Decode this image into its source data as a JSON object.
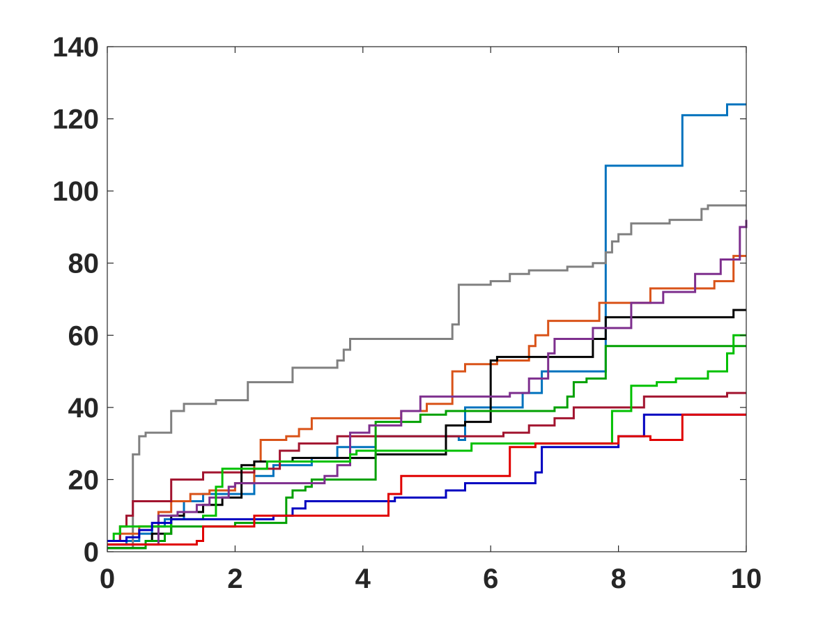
{
  "chart_data": {
    "type": "line",
    "step": true,
    "title": "",
    "xlabel": "",
    "ylabel": "",
    "xlim": [
      0,
      10
    ],
    "ylim": [
      0,
      140
    ],
    "x_ticks": [
      0,
      2,
      4,
      6,
      8,
      10
    ],
    "y_ticks": [
      0,
      20,
      40,
      60,
      80,
      100,
      120,
      140
    ],
    "x_tick_labels": [
      "0",
      "2",
      "4",
      "6",
      "8",
      "10"
    ],
    "y_tick_labels": [
      "0",
      "20",
      "40",
      "60",
      "80",
      "100",
      "120",
      "140"
    ],
    "grid": false,
    "legend": "none",
    "series": [
      {
        "color": "#0072BD",
        "points": [
          [
            0,
            2
          ],
          [
            0.3,
            3
          ],
          [
            0.5,
            5
          ],
          [
            0.7,
            7
          ],
          [
            0.9,
            9
          ],
          [
            1.2,
            14
          ],
          [
            1.5,
            16
          ],
          [
            2,
            16
          ],
          [
            2.3,
            21
          ],
          [
            2.6,
            24
          ],
          [
            3.2,
            26
          ],
          [
            3.6,
            29
          ],
          [
            4.2,
            32
          ],
          [
            5.5,
            31
          ],
          [
            5.6,
            40
          ],
          [
            6.5,
            44
          ],
          [
            6.8,
            50
          ],
          [
            7.8,
            51
          ],
          [
            7.8,
            107
          ],
          [
            8.8,
            107
          ],
          [
            9.0,
            121
          ],
          [
            9.7,
            124
          ],
          [
            10,
            124
          ]
        ]
      },
      {
        "color": "#808080",
        "points": [
          [
            0,
            1
          ],
          [
            0.4,
            1
          ],
          [
            0.4,
            27
          ],
          [
            0.5,
            32
          ],
          [
            0.6,
            33
          ],
          [
            1.0,
            39
          ],
          [
            1.2,
            41
          ],
          [
            1.7,
            42
          ],
          [
            2.2,
            47
          ],
          [
            2.9,
            51
          ],
          [
            3.6,
            53
          ],
          [
            3.7,
            56
          ],
          [
            3.8,
            59
          ],
          [
            5.4,
            63
          ],
          [
            5.5,
            74
          ],
          [
            6.0,
            75
          ],
          [
            6.3,
            77
          ],
          [
            6.6,
            78
          ],
          [
            7.2,
            79
          ],
          [
            7.6,
            80
          ],
          [
            7.8,
            83
          ],
          [
            7.9,
            86
          ],
          [
            8.0,
            88
          ],
          [
            8.2,
            91
          ],
          [
            8.8,
            92
          ],
          [
            9.3,
            95
          ],
          [
            9.4,
            96
          ],
          [
            10,
            96
          ]
        ]
      },
      {
        "color": "#D95319",
        "points": [
          [
            0,
            3
          ],
          [
            0.2,
            5
          ],
          [
            0.5,
            7
          ],
          [
            0.8,
            11
          ],
          [
            1.0,
            14
          ],
          [
            1.3,
            16
          ],
          [
            1.6,
            17
          ],
          [
            2.0,
            19
          ],
          [
            2.3,
            25
          ],
          [
            2.4,
            31
          ],
          [
            2.8,
            32
          ],
          [
            3.0,
            34
          ],
          [
            3.2,
            37
          ],
          [
            4.6,
            39
          ],
          [
            5.0,
            41
          ],
          [
            5.4,
            50
          ],
          [
            5.6,
            52
          ],
          [
            6.1,
            53
          ],
          [
            6.6,
            57
          ],
          [
            6.7,
            60
          ],
          [
            6.9,
            64
          ],
          [
            7.7,
            69
          ],
          [
            8.5,
            73
          ],
          [
            9.5,
            75
          ],
          [
            9.8,
            82
          ],
          [
            10,
            82
          ]
        ]
      },
      {
        "color": "#A2142F",
        "points": [
          [
            0,
            3
          ],
          [
            0.2,
            7
          ],
          [
            0.3,
            10
          ],
          [
            0.4,
            14
          ],
          [
            1.0,
            20
          ],
          [
            1.5,
            22
          ],
          [
            2.3,
            23
          ],
          [
            2.7,
            28
          ],
          [
            3.0,
            30
          ],
          [
            3.6,
            32
          ],
          [
            4.4,
            32
          ],
          [
            5.0,
            32
          ],
          [
            6.2,
            33
          ],
          [
            6.6,
            35
          ],
          [
            7.0,
            37
          ],
          [
            7.3,
            40
          ],
          [
            8.0,
            40
          ],
          [
            8.4,
            43
          ],
          [
            9.0,
            43
          ],
          [
            9.7,
            44
          ],
          [
            10,
            44
          ]
        ]
      },
      {
        "color": "#000000",
        "points": [
          [
            0,
            1
          ],
          [
            0.6,
            3
          ],
          [
            0.7,
            5
          ],
          [
            1.0,
            10
          ],
          [
            1.2,
            11
          ],
          [
            1.5,
            13
          ],
          [
            1.8,
            15
          ],
          [
            2.1,
            24
          ],
          [
            2.3,
            25
          ],
          [
            2.7,
            25
          ],
          [
            2.9,
            26
          ],
          [
            3.3,
            26
          ],
          [
            3.9,
            26
          ],
          [
            4.2,
            27
          ],
          [
            5.3,
            35
          ],
          [
            5.6,
            36
          ],
          [
            6.0,
            53
          ],
          [
            6.1,
            54
          ],
          [
            6.7,
            54
          ],
          [
            7.1,
            54
          ],
          [
            7.6,
            59
          ],
          [
            7.8,
            65
          ],
          [
            9.6,
            65
          ],
          [
            9.8,
            67
          ],
          [
            10,
            67
          ]
        ]
      },
      {
        "color": "#00A000",
        "points": [
          [
            0,
            1
          ],
          [
            0.6,
            3
          ],
          [
            0.9,
            5
          ],
          [
            1.0,
            7
          ],
          [
            1.6,
            7
          ],
          [
            2.0,
            8
          ],
          [
            2.8,
            10
          ],
          [
            2.8,
            15
          ],
          [
            2.9,
            17
          ],
          [
            3.1,
            18
          ],
          [
            3.2,
            20
          ],
          [
            3.6,
            20
          ],
          [
            4.2,
            20
          ],
          [
            4.2,
            36
          ],
          [
            4.8,
            36
          ],
          [
            4.9,
            38
          ],
          [
            5.3,
            39
          ],
          [
            6.0,
            39
          ],
          [
            7.0,
            40
          ],
          [
            7.2,
            43
          ],
          [
            7.3,
            47
          ],
          [
            7.5,
            48
          ],
          [
            7.8,
            50
          ],
          [
            7.8,
            57
          ],
          [
            10,
            57
          ]
        ]
      },
      {
        "color": "#7E2F8E",
        "points": [
          [
            0,
            2
          ],
          [
            0.8,
            2
          ],
          [
            0.8,
            10
          ],
          [
            1.1,
            11
          ],
          [
            1.4,
            13
          ],
          [
            1.6,
            15
          ],
          [
            1.9,
            18
          ],
          [
            2.0,
            19
          ],
          [
            2.3,
            19
          ],
          [
            3.0,
            19
          ],
          [
            3.4,
            21
          ],
          [
            3.6,
            24
          ],
          [
            3.8,
            33
          ],
          [
            4.1,
            35
          ],
          [
            4.6,
            39
          ],
          [
            4.9,
            43
          ],
          [
            5.5,
            43
          ],
          [
            6.3,
            44
          ],
          [
            6.6,
            48
          ],
          [
            6.9,
            55
          ],
          [
            7.0,
            59
          ],
          [
            7.6,
            62
          ],
          [
            8.2,
            69
          ],
          [
            8.7,
            72
          ],
          [
            9.2,
            77
          ],
          [
            9.6,
            81
          ],
          [
            9.9,
            90
          ],
          [
            10,
            92
          ]
        ]
      },
      {
        "color": "#00C000",
        "points": [
          [
            0,
            3
          ],
          [
            0.1,
            5
          ],
          [
            0.2,
            7
          ],
          [
            0.8,
            7
          ],
          [
            1.0,
            9
          ],
          [
            1.5,
            10
          ],
          [
            1.7,
            18
          ],
          [
            1.8,
            23
          ],
          [
            2.0,
            23
          ],
          [
            2.5,
            25
          ],
          [
            3.2,
            25
          ],
          [
            3.8,
            27
          ],
          [
            3.9,
            28
          ],
          [
            5.0,
            28
          ],
          [
            5.7,
            30
          ],
          [
            7.9,
            30
          ],
          [
            7.9,
            39
          ],
          [
            8.2,
            46
          ],
          [
            8.6,
            47
          ],
          [
            8.9,
            48
          ],
          [
            9.4,
            50
          ],
          [
            9.7,
            55
          ],
          [
            9.8,
            60
          ],
          [
            10,
            60
          ]
        ]
      },
      {
        "color": "#0000C0",
        "points": [
          [
            0,
            3
          ],
          [
            0.3,
            4
          ],
          [
            0.5,
            6
          ],
          [
            0.7,
            8
          ],
          [
            1.0,
            9
          ],
          [
            2.3,
            9
          ],
          [
            2.6,
            10
          ],
          [
            2.9,
            12
          ],
          [
            3.1,
            14
          ],
          [
            3.5,
            14
          ],
          [
            4.3,
            14
          ],
          [
            4.5,
            15
          ],
          [
            5.3,
            17
          ],
          [
            5.6,
            19
          ],
          [
            6.7,
            22
          ],
          [
            6.8,
            29
          ],
          [
            8.0,
            29
          ],
          [
            8.0,
            32
          ],
          [
            8.4,
            38
          ],
          [
            9.0,
            38
          ],
          [
            10,
            38
          ]
        ]
      },
      {
        "color": "#E00000",
        "points": [
          [
            0,
            2
          ],
          [
            1.4,
            3
          ],
          [
            1.5,
            7
          ],
          [
            2.3,
            10
          ],
          [
            2.6,
            10
          ],
          [
            4.3,
            10
          ],
          [
            4.4,
            16
          ],
          [
            4.6,
            21
          ],
          [
            5.3,
            21
          ],
          [
            6.3,
            29
          ],
          [
            6.7,
            30
          ],
          [
            7.8,
            30
          ],
          [
            8.0,
            32
          ],
          [
            8.5,
            31
          ],
          [
            9.0,
            38
          ],
          [
            10,
            38
          ]
        ]
      }
    ]
  }
}
